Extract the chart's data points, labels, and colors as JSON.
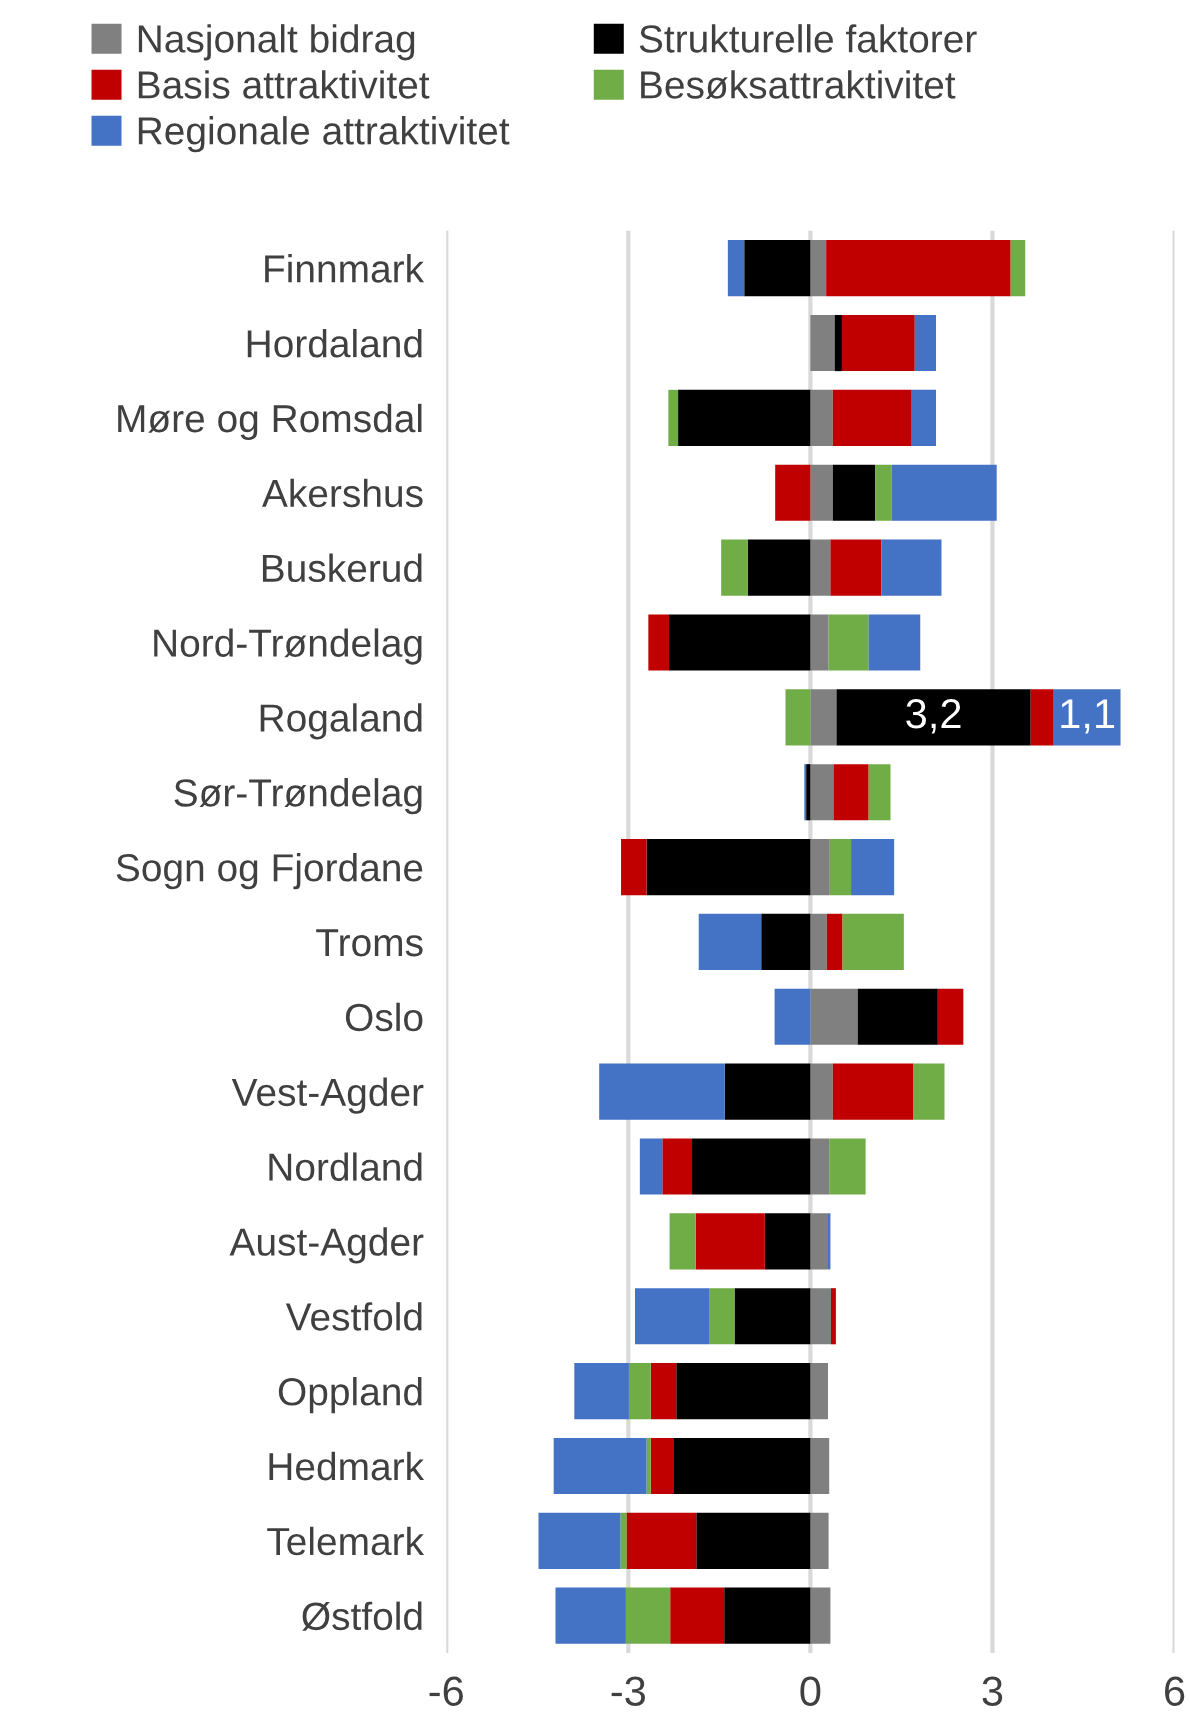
{
  "chart_data": {
    "type": "bar",
    "orientation": "horizontal",
    "stacked": true,
    "categories": [
      "Finnmark",
      "Hordaland",
      "Møre og Romsdal",
      "Akershus",
      "Buskerud",
      "Nord-Trøndelag",
      "Rogaland",
      "Sør-Trøndelag",
      "Sogn og Fjordane",
      "Troms",
      "Oslo",
      "Vest-Agder",
      "Nordland",
      "Aust-Agder",
      "Vestfold",
      "Oppland",
      "Hedmark",
      "Telemark",
      "Østfold"
    ],
    "series": [
      {
        "name": "Nasjonalt bidrag",
        "color": "#808080",
        "values": [
          0.26,
          0.4,
          0.37,
          0.37,
          0.33,
          0.3,
          0.43,
          0.38,
          0.32,
          0.27,
          0.78,
          0.37,
          0.31,
          0.29,
          0.34,
          0.29,
          0.31,
          0.3,
          0.33
        ]
      },
      {
        "name": "Strukturelle faktorer",
        "color": "#000000",
        "values": [
          -1.09,
          0.12,
          -2.18,
          0.7,
          -1.03,
          -2.33,
          3.2,
          -0.07,
          -2.7,
          -0.81,
          1.32,
          -1.41,
          -1.95,
          -0.75,
          -1.25,
          -2.21,
          -2.26,
          -1.88,
          -1.42
        ],
        "value_labels": [
          null,
          null,
          null,
          null,
          null,
          null,
          "3,2",
          null,
          null,
          null,
          null,
          null,
          null,
          null,
          null,
          null,
          null,
          null,
          null
        ]
      },
      {
        "name": "Basis attraktivitet",
        "color": "#c00000",
        "values": [
          3.04,
          1.2,
          1.3,
          -0.58,
          0.84,
          -0.34,
          0.38,
          0.58,
          -0.42,
          0.26,
          0.42,
          1.33,
          -0.49,
          -1.14,
          0.08,
          -0.42,
          -0.37,
          -1.15,
          -0.89
        ]
      },
      {
        "name": "Besøksattraktivitet",
        "color": "#70ad47",
        "values": [
          0.24,
          0,
          -0.16,
          0.27,
          -0.44,
          0.66,
          -0.41,
          0.36,
          0.35,
          1.01,
          0,
          0.51,
          0.6,
          -0.43,
          -0.41,
          -0.36,
          -0.07,
          -0.1,
          -0.73
        ]
      },
      {
        "name": "Regionale attraktivitet",
        "color": "#4472c4",
        "values": [
          -0.27,
          0.35,
          0.4,
          1.73,
          0.99,
          0.85,
          1.1,
          -0.03,
          0.71,
          -1.03,
          -0.59,
          -2.07,
          -0.37,
          0.04,
          -1.23,
          -0.9,
          -1.53,
          -1.35,
          -1.16
        ],
        "value_labels": [
          null,
          null,
          null,
          null,
          null,
          null,
          "1,1",
          null,
          null,
          null,
          null,
          null,
          null,
          null,
          null,
          null,
          null,
          null,
          null
        ]
      }
    ],
    "xlim": [
      -6,
      6
    ],
    "xticks": [
      -6,
      -3,
      0,
      3,
      6
    ],
    "grid": "x",
    "legend": "top"
  }
}
